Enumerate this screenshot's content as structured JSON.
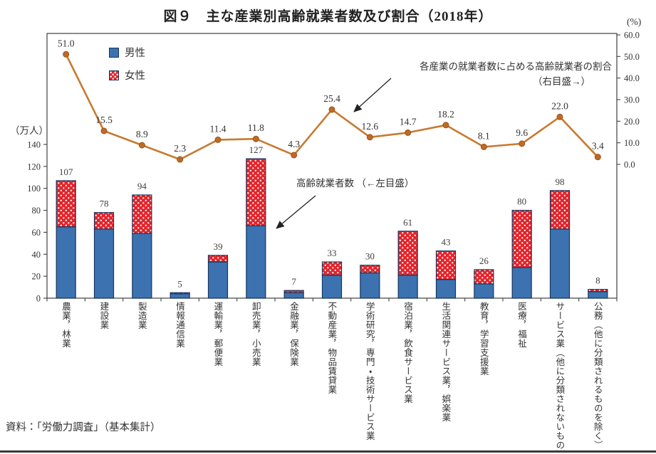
{
  "page": {
    "title": "図９　主な産業別高齢就業者数及び割合（2018年）",
    "source": "資料：「労働力調査」（基本集計）"
  },
  "chart_data": {
    "type": "bar",
    "subtype": "stacked-bar with secondary-axis line",
    "title": "図９　主な産業別高齢就業者数及び割合（2018年）",
    "categories": [
      "農業，林業",
      "建設業",
      "製造業",
      "情報通信業",
      "運輸業，郵便業",
      "卸売業，小売業",
      "金融業，保険業",
      "不動産業，物品賃貸業",
      "学術研究，専門・技術サービス業",
      "宿泊業，飲食サービス業",
      "生活関連サービス業，娯楽業",
      "教育，学習支援業",
      "医療，福祉",
      "サービス業（他に分類されないもの）",
      "公務（他に分類されるものを除く）"
    ],
    "series": [
      {
        "name": "男性",
        "type": "bar-stack",
        "values": [
          65,
          63,
          59,
          4,
          33,
          66,
          5,
          21,
          23,
          21,
          17,
          13,
          28,
          63,
          6
        ]
      },
      {
        "name": "女性",
        "type": "bar-stack",
        "values": [
          42,
          15,
          35,
          1,
          6,
          61,
          2,
          12,
          7,
          40,
          26,
          13,
          52,
          35,
          2
        ]
      }
    ],
    "bar_totals": [
      107,
      78,
      94,
      5,
      39,
      127,
      7,
      33,
      30,
      61,
      43,
      26,
      80,
      98,
      8
    ],
    "line_series": {
      "name": "各産業の就業者数に占める高齢就業者の割合（右目盛）",
      "values": [
        51.0,
        15.5,
        8.9,
        2.3,
        11.4,
        11.8,
        4.3,
        25.4,
        12.6,
        14.7,
        18.2,
        8.1,
        9.6,
        22.0,
        3.4
      ],
      "labels": [
        "51.0",
        "15.5",
        "8.9",
        "2.3",
        "11.4",
        "11.8",
        "4.3",
        "25.4",
        "12.6",
        "14.7",
        "18.2",
        "8.1",
        "9.6",
        "22.0",
        "3.4"
      ]
    },
    "left_axis": {
      "unit": "（万人）",
      "ticks": [
        0,
        20,
        40,
        60,
        80,
        100,
        120,
        140
      ],
      "applies_to": "bars"
    },
    "right_axis": {
      "unit": "(%)",
      "ticks": [
        "0.0",
        "10.0",
        "20.0",
        "30.0",
        "40.0",
        "50.0",
        "60.0"
      ],
      "applies_to": "line"
    },
    "legend": {
      "position": "top-left-inside",
      "items": [
        {
          "label": "男性",
          "swatch": "solid-blue"
        },
        {
          "label": "女性",
          "swatch": "red-with-white-dots"
        }
      ]
    },
    "annotations": {
      "line_note_1": "各産業の就業者数に占める高齢就業者の割合",
      "line_note_2": "（右目盛→）",
      "bar_note": "高齢就業者数 （←左目盛）"
    },
    "grid": "off",
    "colors": {
      "male_fill": "#3C72B0",
      "bar_border": "#17375E",
      "female_fill": "#E3242B",
      "line_stroke": "#C87A30",
      "marker_fill": "#C06A28",
      "marker_stroke": "#9A5318",
      "frame": "#404040",
      "text": "#333333"
    }
  }
}
